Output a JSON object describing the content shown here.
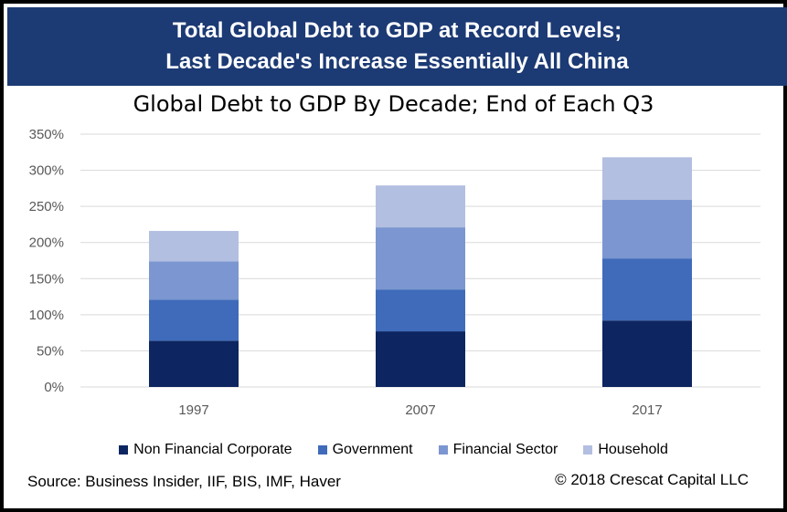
{
  "banner": {
    "line1": "Total Global Debt to GDP at Record Levels;",
    "line2": "Last Decade's Increase Essentially All China"
  },
  "footer": {
    "source": "Source: Business Insider, IIF, BIS, IMF, Haver",
    "copyright": "© 2018 Crescat Capital LLC"
  },
  "chart_data": {
    "type": "bar",
    "stacked": true,
    "title": "Global Debt to GDP By Decade; End of Each Q3",
    "categories": [
      "1997",
      "2007",
      "2017"
    ],
    "series": [
      {
        "name": "Non Financial Corporate",
        "color": "#0d2560",
        "values": [
          64,
          77,
          92
        ]
      },
      {
        "name": "Government",
        "color": "#3f6bba",
        "values": [
          57,
          58,
          86
        ]
      },
      {
        "name": "Financial Sector",
        "color": "#7b96d0",
        "values": [
          53,
          86,
          81
        ]
      },
      {
        "name": "Household",
        "color": "#b3bfe0",
        "values": [
          42,
          58,
          59
        ]
      }
    ],
    "ylim": [
      0,
      350
    ],
    "yticks": [
      "0%",
      "50%",
      "100%",
      "150%",
      "200%",
      "250%",
      "300%",
      "350%"
    ],
    "ytick_values": [
      0,
      50,
      100,
      150,
      200,
      250,
      300,
      350
    ],
    "grid": true,
    "legend": "bottom"
  }
}
